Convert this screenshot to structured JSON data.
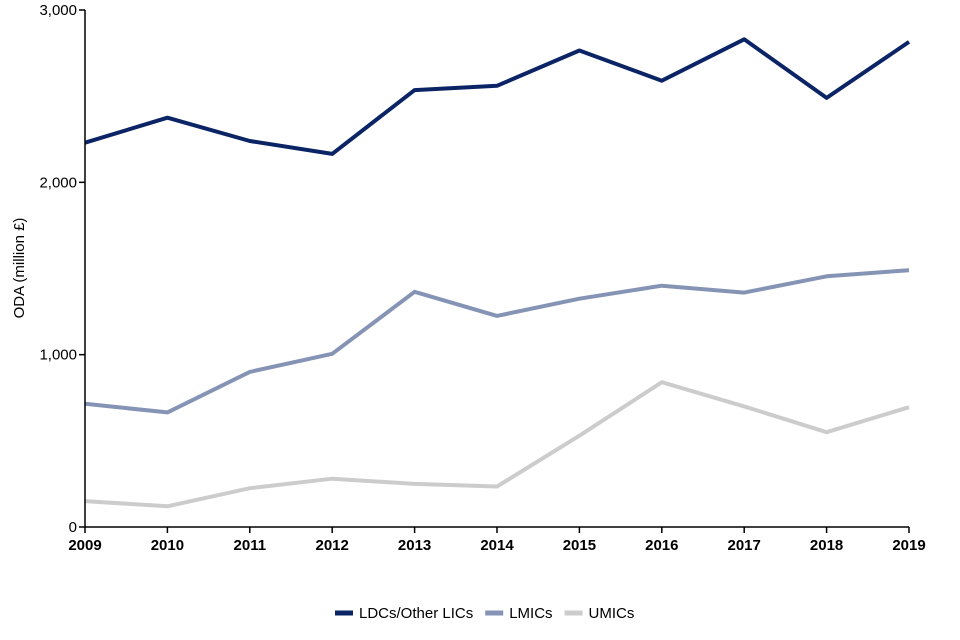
{
  "chart_data": {
    "type": "line",
    "title": "",
    "xlabel": "",
    "ylabel": "ODA (million £)",
    "x": [
      "2009",
      "2010",
      "2011",
      "2012",
      "2013",
      "2014",
      "2015",
      "2016",
      "2017",
      "2018",
      "2019"
    ],
    "ylim": [
      0,
      3000
    ],
    "yticks": [
      0,
      1000,
      2000,
      3000
    ],
    "ytick_labels": [
      "0",
      "1,000",
      "2,000",
      "3,000"
    ],
    "grid": false,
    "legend_position": "bottom",
    "series": [
      {
        "name": "LDCs/Other LICs",
        "color": "#0b2466",
        "values": [
          2230,
          2375,
          2240,
          2165,
          2535,
          2560,
          2765,
          2590,
          2830,
          2490,
          2815
        ]
      },
      {
        "name": "LMICs",
        "color": "#8593b5",
        "values": [
          715,
          665,
          900,
          1005,
          1365,
          1225,
          1325,
          1400,
          1360,
          1455,
          1490
        ]
      },
      {
        "name": "UMICs",
        "color": "#cccccc",
        "values": [
          150,
          120,
          225,
          280,
          250,
          235,
          530,
          840,
          700,
          550,
          695
        ]
      }
    ]
  }
}
